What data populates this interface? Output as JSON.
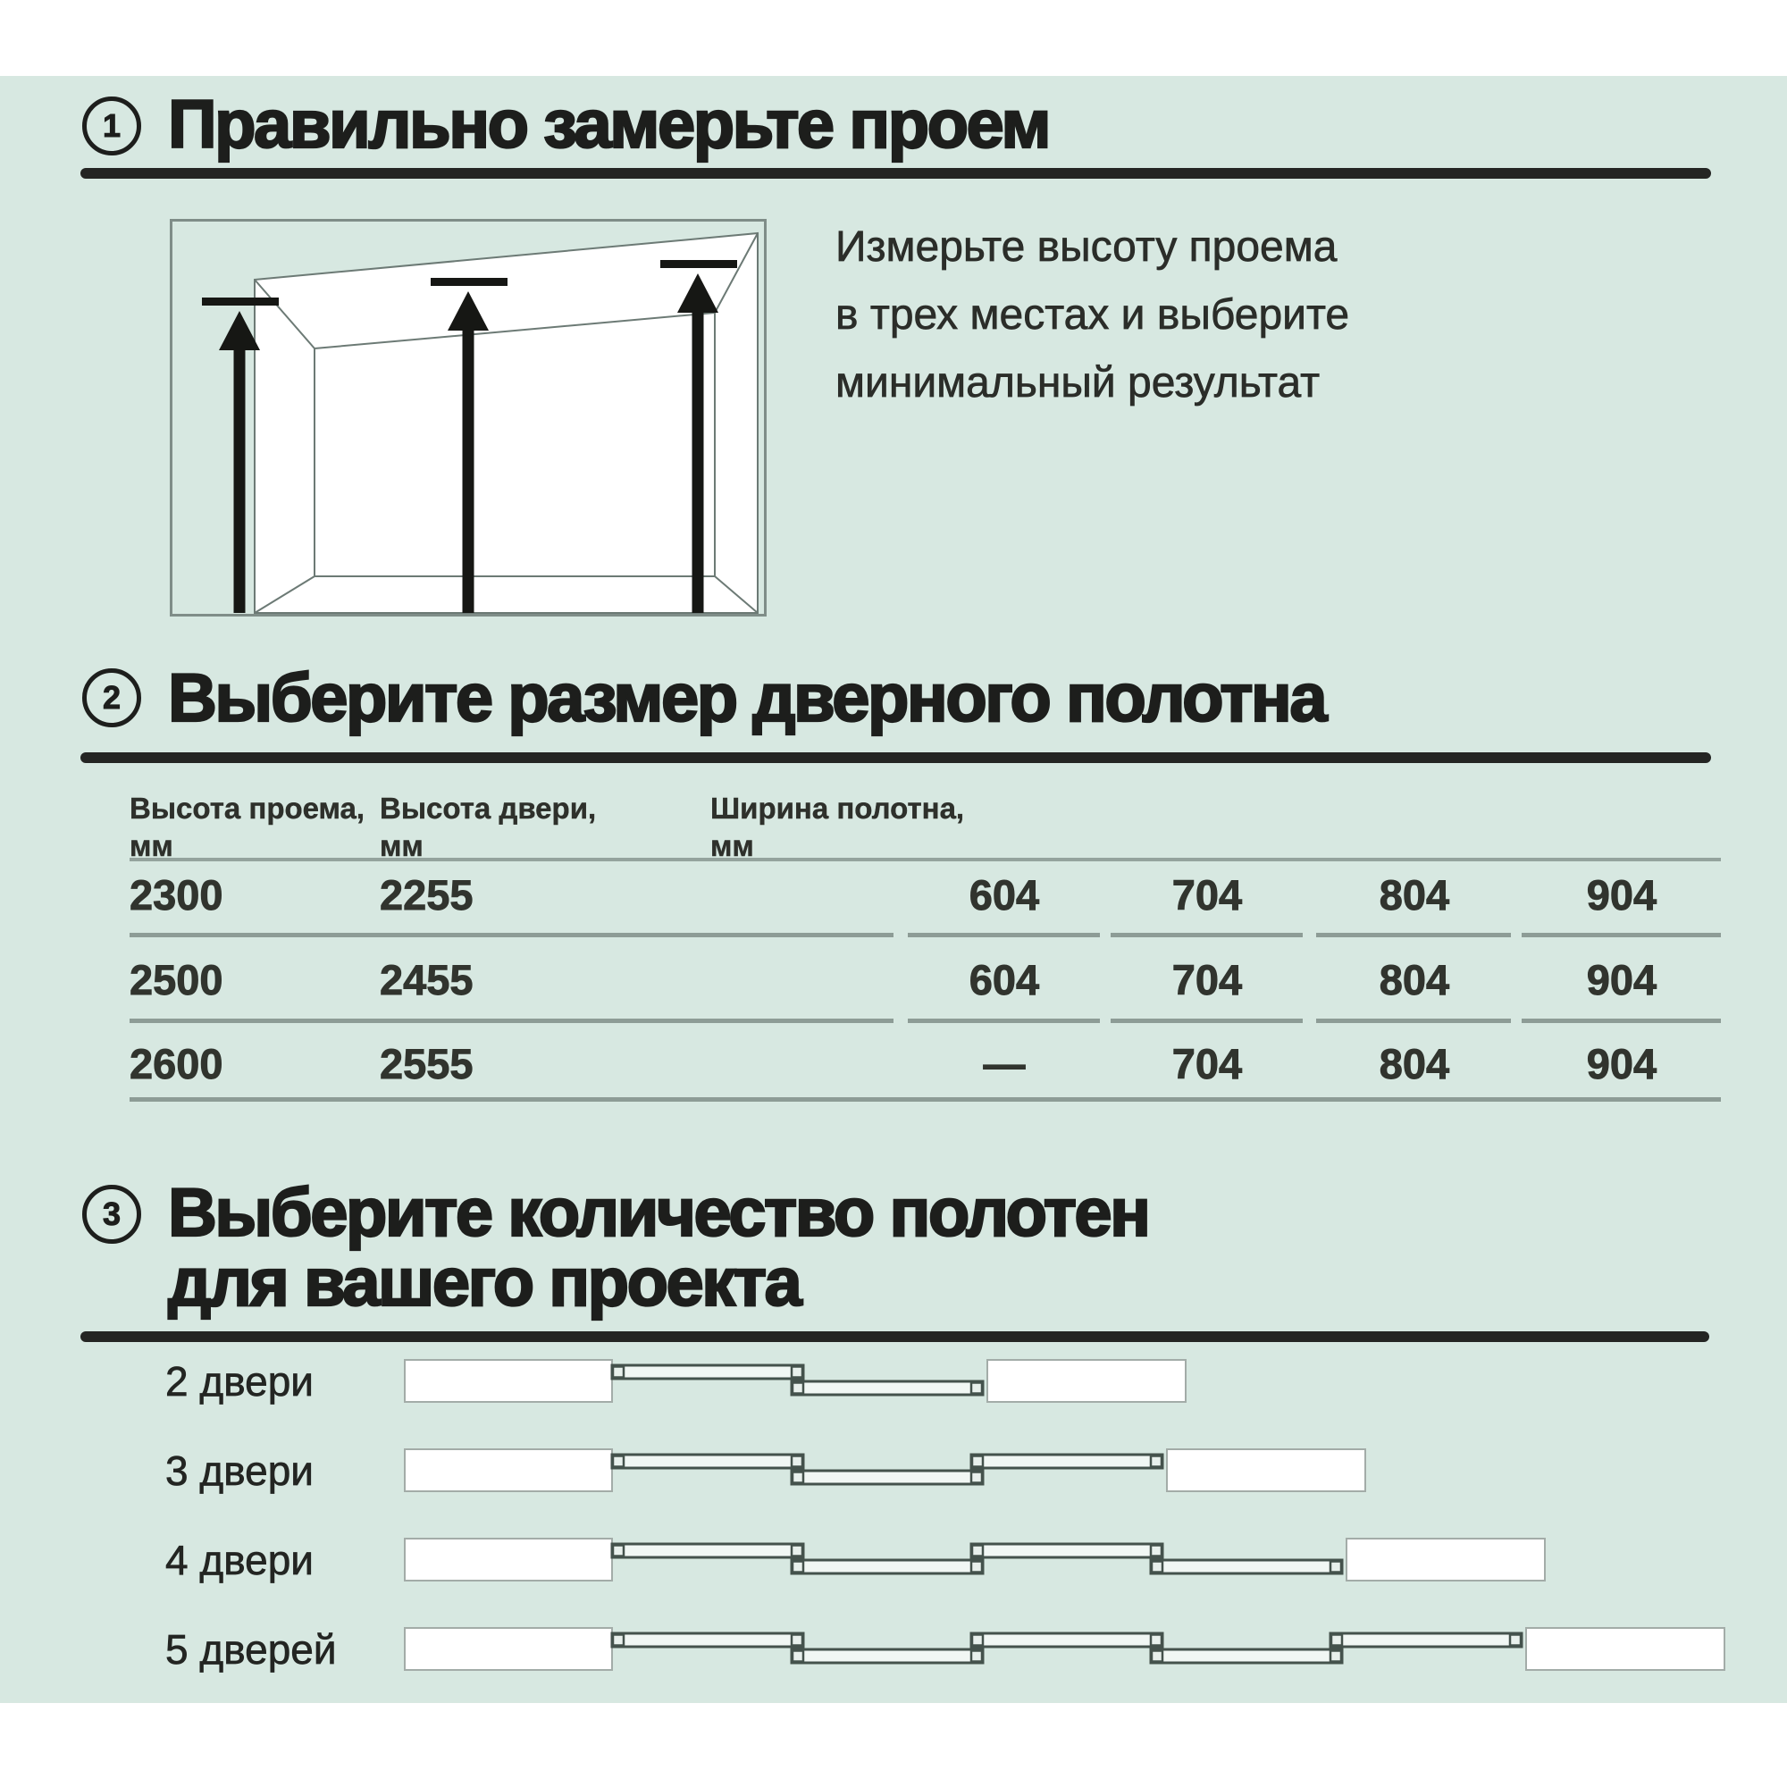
{
  "colors": {
    "panel_bg": "#d7e8e1",
    "heading": "#1d1e1c",
    "rule": "#242523",
    "table_line": "#8d9c96",
    "body_text": "#2b2d29",
    "arrow": "#161714",
    "diagram_outline": "#44524c"
  },
  "section1": {
    "number": "1",
    "title": "Правильно замерьте проем",
    "paragraph": [
      "Измерьте высоту проема",
      "в трех местах и выберите",
      "минимальный результат"
    ]
  },
  "section2": {
    "number": "2",
    "title": "Выберите размер дверного полотна",
    "table": {
      "headers": [
        {
          "line1": "Высота проема,",
          "line2": "мм"
        },
        {
          "line1": "Высота двери,",
          "line2": "мм"
        },
        {
          "line1": "Ширина полотна,",
          "line2": "мм"
        }
      ],
      "rows": [
        {
          "opening_height": "2300",
          "door_height": "2255",
          "panel_widths": [
            "604",
            "704",
            "804",
            "904"
          ]
        },
        {
          "opening_height": "2500",
          "door_height": "2455",
          "panel_widths": [
            "604",
            "704",
            "804",
            "904"
          ]
        },
        {
          "opening_height": "2600",
          "door_height": "2555",
          "panel_widths": [
            "—",
            "704",
            "804",
            "904"
          ]
        }
      ]
    }
  },
  "section3": {
    "number": "3",
    "title_lines": [
      "Выберите количество полотен",
      "для вашего проекта"
    ],
    "options": [
      {
        "label": "2 двери",
        "doors": 2
      },
      {
        "label": "3 двери",
        "doors": 3
      },
      {
        "label": "4 двери",
        "doors": 4
      },
      {
        "label": "5 дверей",
        "doors": 5
      }
    ]
  }
}
